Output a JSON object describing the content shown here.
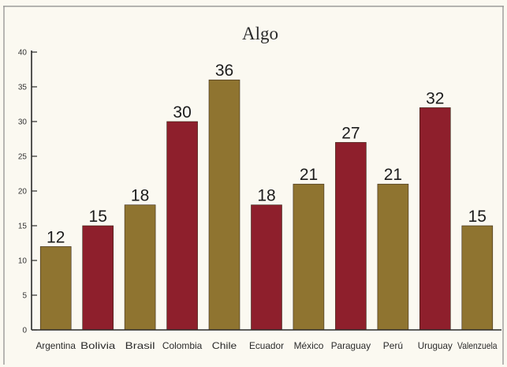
{
  "chart_data": {
    "type": "bar",
    "title": "Algo",
    "xlabel": "",
    "ylabel": "",
    "categories": [
      "Argentina",
      "Bolivia",
      "Brasil",
      "Colombia",
      "Chile",
      "Ecuador",
      "México",
      "Paraguay",
      "Perú",
      "Uruguay",
      "Valenzuela"
    ],
    "values": [
      12,
      15,
      18,
      30,
      36,
      18,
      21,
      27,
      21,
      32,
      15
    ],
    "data_labels": [
      "12",
      "15",
      "18",
      "30",
      "36",
      "18",
      "21",
      "27",
      "21",
      "32",
      "15"
    ],
    "ylim": [
      0,
      40
    ],
    "yticks": [
      0,
      5,
      10,
      15,
      20,
      25,
      30,
      35,
      40
    ],
    "ytick_labels": [
      "0",
      "5",
      "10",
      "15",
      "20",
      "25",
      "30",
      "35",
      "40"
    ],
    "grid": false,
    "legend": "none",
    "colors": {
      "gold": "#8f7430",
      "crimson": "#8e1f2c",
      "bar_pattern": [
        "gold",
        "crimson",
        "gold",
        "crimson",
        "gold",
        "crimson",
        "gold",
        "crimson",
        "gold",
        "crimson",
        "gold"
      ]
    }
  }
}
